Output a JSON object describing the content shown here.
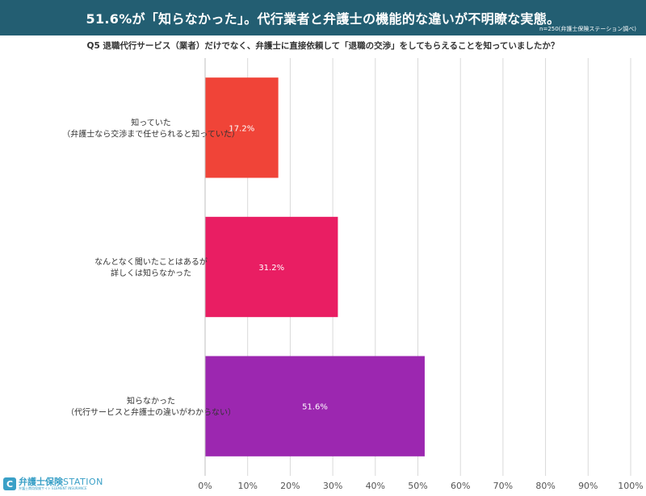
{
  "header": {
    "title": "51.6%が「知らなかった」。代行業者と弁護士の機能的な違いが不明瞭な実態。",
    "sample_note": "n=250(弁護士保険ステーション調べ)"
  },
  "question": "Q5 退職代行サービス（業者）だけでなく、弁護士に直接依頼して「退職の交渉」をしてもらえることを知っていましたか？",
  "logo": {
    "name_jp": "弁護士保険",
    "name_en": "STATION",
    "sub": "弁護士費用保険サイト ELEMENT INSURANCE"
  },
  "chart_data": {
    "type": "bar",
    "orientation": "horizontal",
    "categories": [
      [
        "知っていた",
        "（弁護士なら交渉まで任せられると知っていた）"
      ],
      [
        "なんとなく聞いたことはあるが",
        "詳しくは知らなかった"
      ],
      [
        "知らなかった",
        "（代行サービスと弁護士の違いがわからない）"
      ]
    ],
    "values": [
      17.2,
      31.2,
      51.6
    ],
    "value_labels": [
      "17.2%",
      "31.2%",
      "51.6%"
    ],
    "colors": [
      "#f04438",
      "#e91e63",
      "#9c27b0"
    ],
    "xlim": [
      0,
      100
    ],
    "xticks": [
      "0%",
      "10%",
      "20%",
      "30%",
      "40%",
      "50%",
      "60%",
      "70%",
      "80%",
      "90%",
      "100%"
    ],
    "grid": true
  }
}
